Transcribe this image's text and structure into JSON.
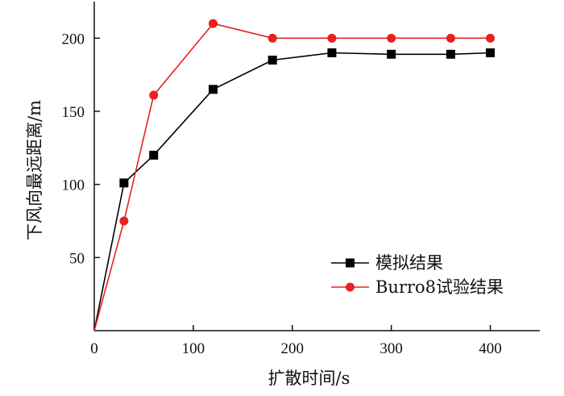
{
  "chart_data": {
    "type": "line",
    "xlabel": "扩散时间/s",
    "ylabel": "下风向最远距离/m",
    "xlim": [
      0,
      450
    ],
    "ylim": [
      0,
      225
    ],
    "x_ticks": [
      0,
      100,
      200,
      300,
      400
    ],
    "y_ticks": [
      50,
      100,
      150,
      200
    ],
    "grid": false,
    "legend_position": "right",
    "series": [
      {
        "name": "模拟结果",
        "color": "#000000",
        "marker": "square",
        "x": [
          0,
          30,
          60,
          120,
          180,
          240,
          300,
          360,
          400
        ],
        "y": [
          0,
          101,
          120,
          165,
          185,
          190,
          189,
          189,
          190
        ]
      },
      {
        "name": "Burro8试验结果",
        "color": "#e8211e",
        "marker": "circle",
        "x": [
          0,
          30,
          60,
          120,
          180,
          240,
          300,
          360,
          400
        ],
        "y": [
          0,
          75,
          161,
          210,
          200,
          200,
          200,
          200,
          200
        ]
      }
    ]
  }
}
